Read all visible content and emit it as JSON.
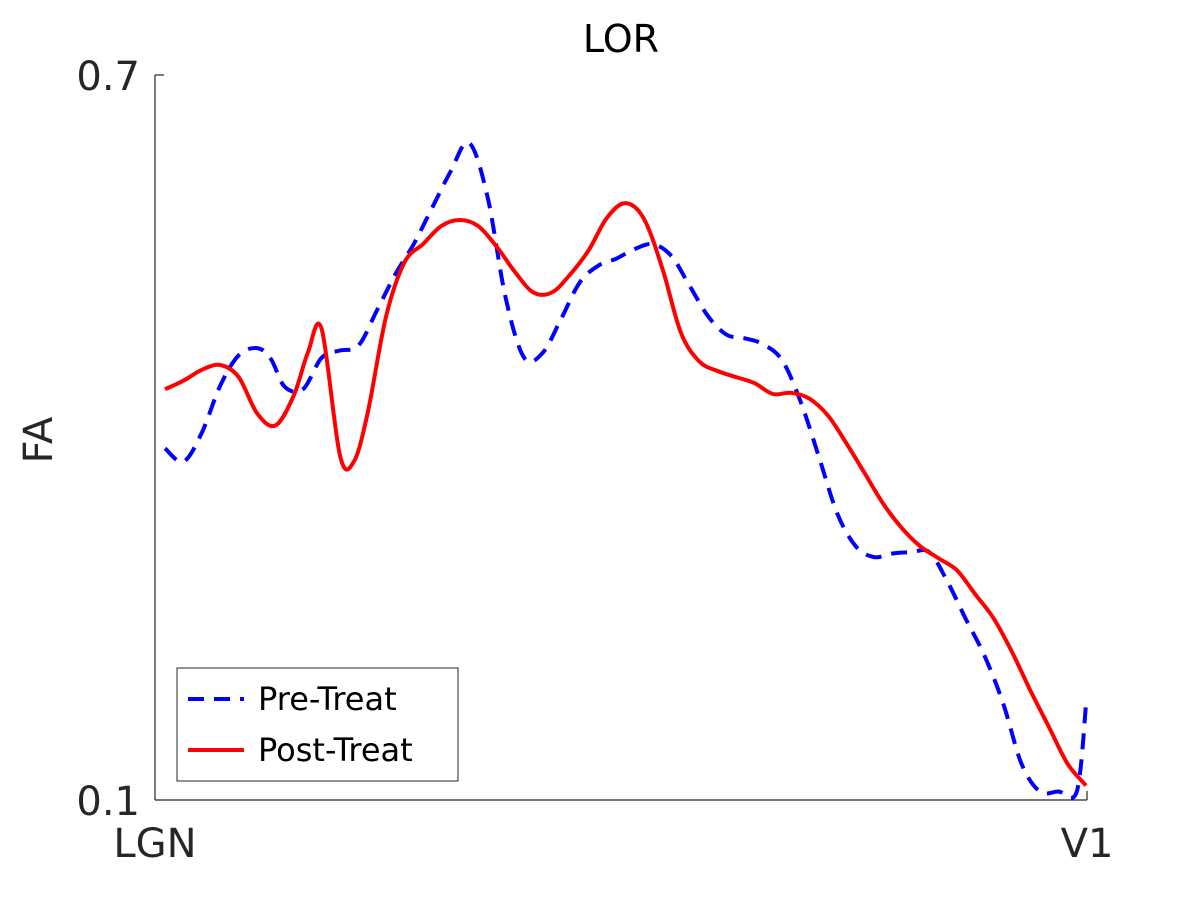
{
  "chart_data": {
    "type": "line",
    "title": "LOR",
    "xlabel": "",
    "ylabel": "FA",
    "ylim": [
      0.1,
      0.7
    ],
    "xlim": [
      0,
      100
    ],
    "yticks": [
      "0.1",
      "0.7"
    ],
    "xticks": [
      "LGN",
      "V1"
    ],
    "grid": false,
    "legend_position": "bottom-left",
    "series": [
      {
        "name": "Pre-Treat",
        "color": "#0000ff",
        "style": "dashed",
        "x": [
          0,
          2,
          4,
          6,
          8,
          10,
          11.5,
          13,
          15,
          17,
          19,
          21,
          23,
          25,
          27,
          29,
          31,
          33,
          35,
          37,
          39,
          41,
          43,
          45,
          47,
          49,
          51,
          53,
          55,
          57,
          59,
          61,
          63,
          65,
          67,
          69,
          71,
          73,
          75,
          77,
          79,
          81,
          83,
          85,
          87,
          89,
          91,
          93,
          95,
          97,
          99,
          100
        ],
        "y": [
          0.391,
          0.38,
          0.404,
          0.443,
          0.468,
          0.474,
          0.465,
          0.442,
          0.44,
          0.466,
          0.472,
          0.476,
          0.505,
          0.535,
          0.56,
          0.59,
          0.62,
          0.644,
          0.6,
          0.515,
          0.466,
          0.47,
          0.498,
          0.528,
          0.542,
          0.548,
          0.556,
          0.56,
          0.55,
          0.525,
          0.5,
          0.485,
          0.482,
          0.477,
          0.464,
          0.43,
          0.384,
          0.337,
          0.31,
          0.301,
          0.304,
          0.305,
          0.305,
          0.28,
          0.249,
          0.219,
          0.18,
          0.13,
          0.107,
          0.107,
          0.107,
          0.179
        ]
      },
      {
        "name": "Post-Treat",
        "color": "#ff0000",
        "style": "solid",
        "x": [
          0,
          2,
          4,
          6,
          8,
          10,
          12,
          14,
          15.5,
          17,
          19,
          20.5,
          22,
          24,
          26,
          28,
          30,
          32,
          34,
          36,
          38,
          40,
          42,
          44,
          46,
          48,
          50,
          52,
          54,
          56,
          58,
          60,
          62,
          64,
          66,
          68,
          70,
          72,
          74,
          76,
          78,
          80,
          82,
          84,
          86,
          88,
          90,
          92,
          94,
          96,
          98,
          100
        ],
        "y": [
          0.44,
          0.447,
          0.456,
          0.46,
          0.45,
          0.42,
          0.41,
          0.435,
          0.47,
          0.49,
          0.385,
          0.38,
          0.42,
          0.5,
          0.545,
          0.56,
          0.575,
          0.58,
          0.575,
          0.558,
          0.537,
          0.52,
          0.52,
          0.535,
          0.555,
          0.582,
          0.594,
          0.581,
          0.54,
          0.487,
          0.463,
          0.455,
          0.45,
          0.445,
          0.436,
          0.437,
          0.432,
          0.418,
          0.395,
          0.37,
          0.345,
          0.325,
          0.31,
          0.3,
          0.29,
          0.27,
          0.25,
          0.222,
          0.19,
          0.16,
          0.13,
          0.112
        ]
      }
    ]
  }
}
